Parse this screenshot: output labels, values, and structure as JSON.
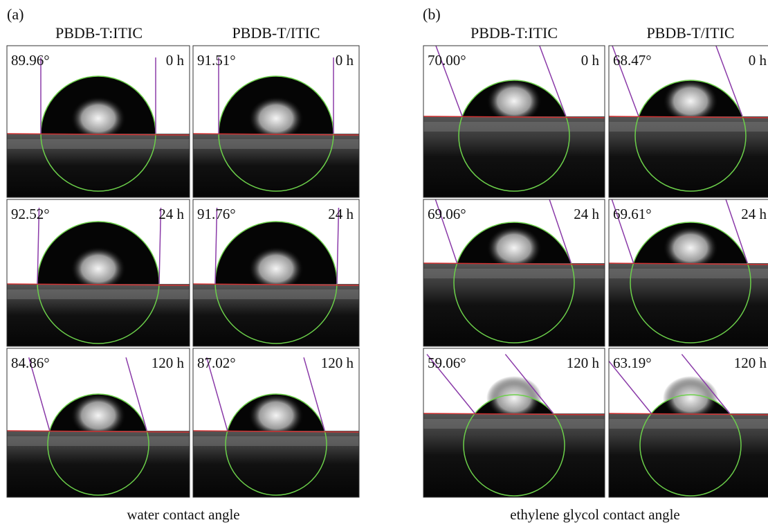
{
  "panels": [
    {
      "label": "(a)",
      "columns": [
        "PBDB-T:ITIC",
        "PBDB-T/ITIC"
      ],
      "cells": [
        [
          {
            "angle": "89.96°",
            "time": "0 h"
          },
          {
            "angle": "91.51°",
            "time": "0 h"
          }
        ],
        [
          {
            "angle": "92.52°",
            "time": "24 h"
          },
          {
            "angle": "91.76°",
            "time": "24 h"
          }
        ],
        [
          {
            "angle": "84.86°",
            "time": "120 h"
          },
          {
            "angle": "87.02°",
            "time": "120 h"
          }
        ]
      ],
      "caption": "water contact angle"
    },
    {
      "label": "(b)",
      "columns": [
        "PBDB-T:ITIC",
        "PBDB-T/ITIC"
      ],
      "cells": [
        [
          {
            "angle": "70.00°",
            "time": "0 h"
          },
          {
            "angle": "68.47°",
            "time": "0 h"
          }
        ],
        [
          {
            "angle": "69.06°",
            "time": "24 h"
          },
          {
            "angle": "69.61°",
            "time": "24 h"
          }
        ],
        [
          {
            "angle": "59.06°",
            "time": "120 h"
          },
          {
            "angle": "63.19°",
            "time": "120 h"
          }
        ]
      ],
      "caption": "ethylene glycol contact angle"
    }
  ]
}
